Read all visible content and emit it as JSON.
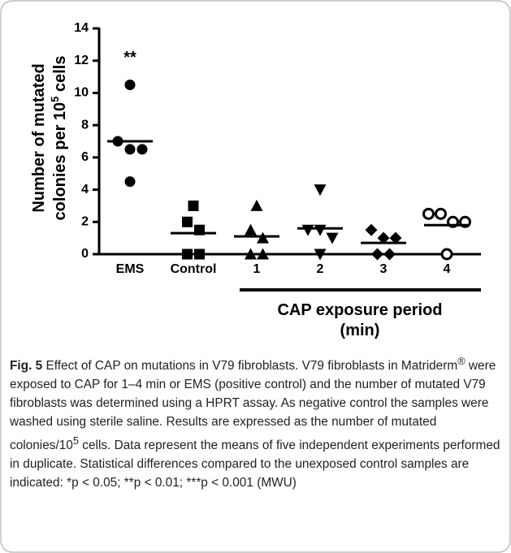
{
  "chart_data": {
    "type": "dot",
    "categories": [
      "EMS",
      "Control",
      "1",
      "2",
      "3",
      "4"
    ],
    "markers": [
      "circle",
      "square",
      "triangle-up",
      "triangle-down",
      "diamond",
      "open-circle"
    ],
    "values": [
      [
        10.5,
        6.5,
        6.5,
        7,
        4.5
      ],
      [
        3,
        2,
        1.5,
        0,
        0
      ],
      [
        3,
        1.5,
        1,
        0,
        0
      ],
      [
        4,
        1.5,
        1.5,
        1,
        0
      ],
      [
        1.5,
        1,
        1,
        0,
        0
      ],
      [
        2.5,
        2.5,
        2,
        2,
        0
      ]
    ],
    "means": [
      7,
      1.3,
      1.1,
      1.6,
      0.7,
      1.8
    ],
    "color": "#000000",
    "ylim": [
      0,
      14
    ],
    "yticks": [
      0,
      2,
      4,
      6,
      8,
      10,
      12,
      14
    ],
    "y_label": [
      "Number of mutated",
      "colonies per 10",
      "5",
      " cells"
    ],
    "annotation": "**",
    "group_label": [
      "CAP exposure period",
      "(min)"
    ]
  },
  "caption": {
    "label": "Fig. 5",
    "parts": [
      " Effect of CAP on mutations in V79 fibroblasts. V79 fibroblasts in Matriderm",
      "®",
      " were exposed to CAP for 1–4 min or EMS (positive control) and the number of mutated V79 fibroblasts was determined using a HPRT assay. As negative control the samples were washed using sterile saline. Results are expressed as the number of mutated colonies/10",
      "5",
      " cells. Data represent the means of five independent experiments performed in duplicate. Statistical differences compared to the unexposed control samples are indicated: *p < 0.05; **p < 0.01; ***p < 0.001 (MWU)"
    ]
  }
}
